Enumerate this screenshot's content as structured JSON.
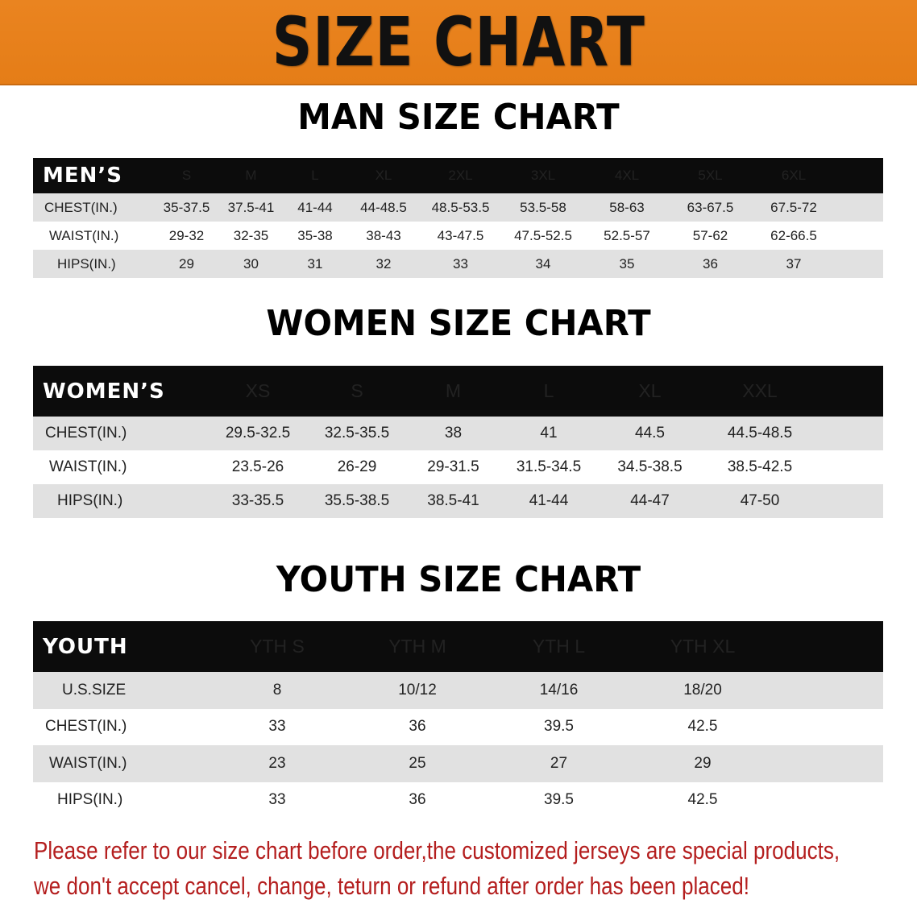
{
  "banner": {
    "title": "SIZE CHART",
    "color": "#e8821f"
  },
  "men": {
    "title": "MAN SIZE CHART",
    "header": "MEN’S",
    "sizes": [
      "S",
      "M",
      "L",
      "XL",
      "2XL",
      "3XL",
      "4XL",
      "5XL",
      "6XL"
    ],
    "rows": [
      {
        "label": "CHEST(IN.)",
        "indent": 14,
        "values": [
          "35-37.5",
          "37.5-41",
          "41-44",
          "44-48.5",
          "48.5-53.5",
          "53.5-58",
          "58-63",
          "63-67.5",
          "67.5-72"
        ]
      },
      {
        "label": "WAIST(IN.)",
        "indent": 20,
        "values": [
          "29-32",
          "32-35",
          "35-38",
          "38-43",
          "43-47.5",
          "47.5-52.5",
          "52.5-57",
          "57-62",
          "62-66.5"
        ]
      },
      {
        "label": "HIPS(IN.)",
        "indent": 30,
        "values": [
          "29",
          "30",
          "31",
          "32",
          "33",
          "34",
          "35",
          "36",
          "37"
        ]
      }
    ]
  },
  "women": {
    "title": "WOMEN SIZE CHART",
    "header": "WOMEN’S",
    "sizes": [
      "XS",
      "S",
      "M",
      "L",
      "XL",
      "XXL"
    ],
    "rows": [
      {
        "label": "CHEST(IN.)",
        "indent": 15,
        "values": [
          "29.5-32.5",
          "32.5-35.5",
          "38",
          "41",
          "44.5",
          "44.5-48.5"
        ]
      },
      {
        "label": "WAIST(IN.)",
        "indent": 20,
        "values": [
          "23.5-26",
          "26-29",
          "29-31.5",
          "31.5-34.5",
          "34.5-38.5",
          "38.5-42.5"
        ]
      },
      {
        "label": "HIPS(IN.)",
        "indent": 30,
        "values": [
          "33-35.5",
          "35.5-38.5",
          "38.5-41",
          "41-44",
          "44-47",
          "47-50"
        ]
      }
    ]
  },
  "youth": {
    "title": "YOUTH SIZE CHART",
    "header": "YOUTH",
    "sizes": [
      "YTH S",
      "YTH M",
      "YTH L",
      "YTH XL"
    ],
    "rows": [
      {
        "label": "U.S.SIZE",
        "indent": 36,
        "values": [
          "8",
          "10/12",
          "14/16",
          "18/20"
        ]
      },
      {
        "label": "CHEST(IN.)",
        "indent": 15,
        "values": [
          "33",
          "36",
          "39.5",
          "42.5"
        ]
      },
      {
        "label": "WAIST(IN.)",
        "indent": 20,
        "values": [
          "23",
          "25",
          "27",
          "29"
        ]
      },
      {
        "label": "HIPS(IN.)",
        "indent": 30,
        "values": [
          "33",
          "36",
          "39.5",
          "42.5"
        ]
      }
    ]
  },
  "notice": {
    "line1": "Please refer to our size chart before order,the customized jerseys are special products,",
    "line2": "we don't accept cancel, change, teturn or refund after order has been placed!",
    "color": "#b41e1e"
  }
}
